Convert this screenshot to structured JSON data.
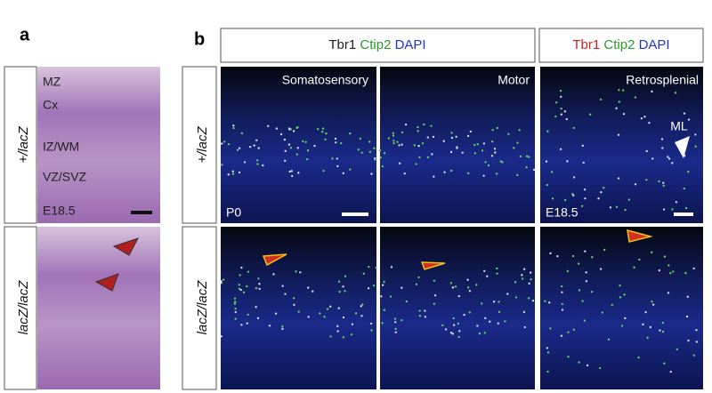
{
  "panel_a": {
    "letter": "a",
    "rows": [
      "+/lacZ",
      "lacZ/lacZ"
    ],
    "labels": [
      "MZ",
      "Cx",
      "IZ/WM",
      "VZ/SVZ",
      "E18.5"
    ]
  },
  "panel_b": {
    "letter": "b",
    "headers": [
      [
        "Tbr1",
        "Ctip2",
        "DAPI"
      ],
      [
        "Tbr1",
        "Ctip2",
        "DAPI"
      ]
    ],
    "columns": [
      "Somatosensory",
      "Motor",
      "Retrosplenial"
    ],
    "rows": [
      "+/lacZ",
      "lacZ/lacZ"
    ],
    "labels": {
      "age_left": "P0",
      "age_right": "E18.5",
      "midline": "ML"
    }
  }
}
